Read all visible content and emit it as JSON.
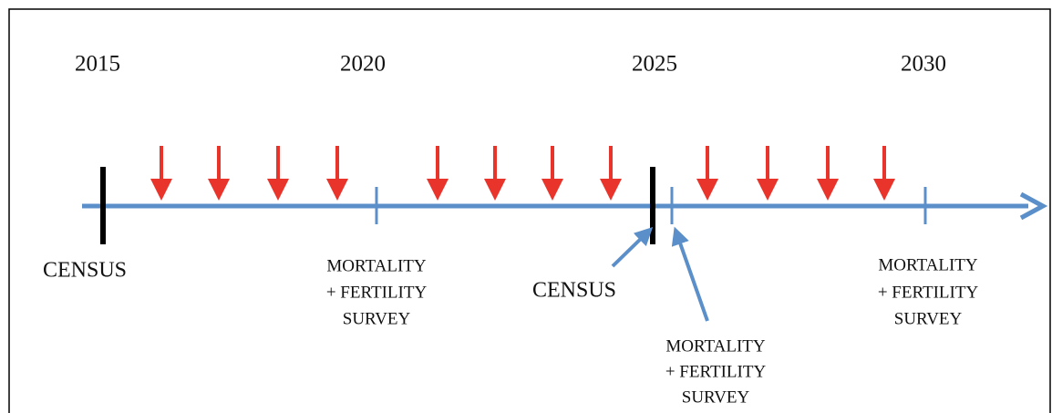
{
  "years": [
    "2015",
    "2020",
    "2025",
    "2030"
  ],
  "labels": [
    {
      "lines": [
        "CENSUS"
      ]
    },
    {
      "lines": [
        "MORTALITY",
        "+ FERTILITY",
        "SURVEY"
      ]
    },
    {
      "lines": [
        "CENSUS"
      ]
    },
    {
      "lines": [
        "MORTALITY",
        "+ FERTILITY",
        "SURVEY"
      ]
    },
    {
      "lines": [
        "MORTALITY",
        "+ FERTILITY",
        "SURVEY"
      ]
    }
  ]
}
